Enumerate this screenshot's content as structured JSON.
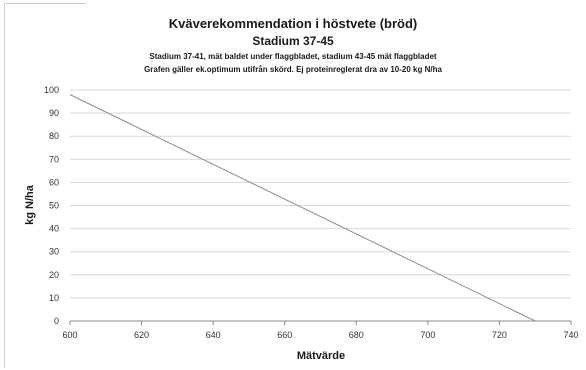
{
  "chart_data": {
    "type": "line",
    "title": "Kväverekommendation i höstvete (bröd)",
    "subtitle": "Stadium 37-45",
    "subtitle_lines": [
      "Stadium 37-41, mät baldet under flaggbladet, stadium 43-45 mät flaggbladet",
      "Grafen gäller ek.optimum utifrån skörd. Ej proteinreglerat dra av 10-20 kg N/ha"
    ],
    "xlabel": "Mätvärde",
    "ylabel": "kg N/ha",
    "xlim": [
      600,
      740
    ],
    "ylim": [
      0,
      100
    ],
    "x_ticks": [
      600,
      620,
      640,
      660,
      680,
      700,
      720,
      740
    ],
    "y_ticks": [
      0,
      10,
      20,
      30,
      40,
      50,
      60,
      70,
      80,
      90,
      100
    ],
    "grid": true,
    "legend": "none",
    "series": [
      {
        "color": "#8c8c8c",
        "x": [
          600,
          730
        ],
        "y": [
          98,
          0
        ]
      }
    ]
  }
}
